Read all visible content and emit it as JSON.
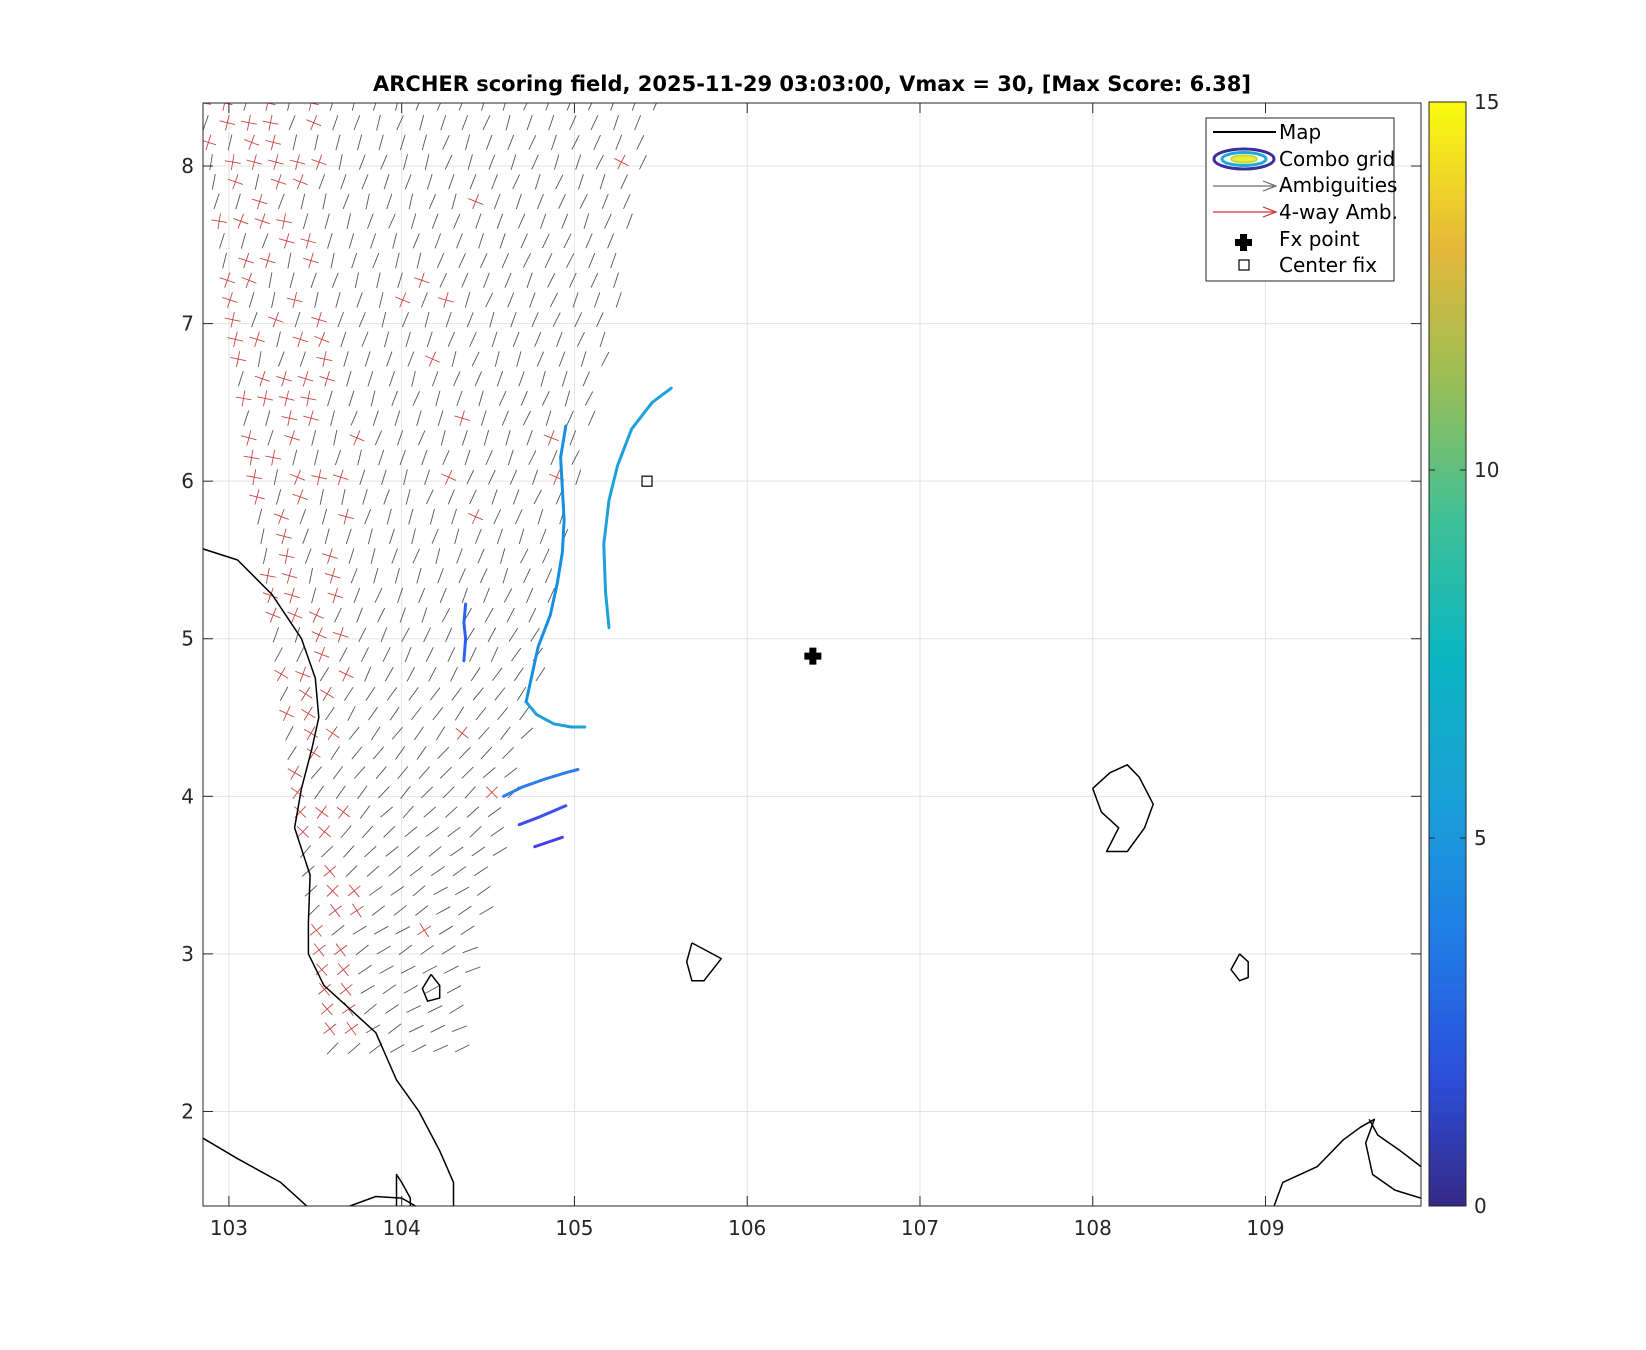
{
  "chart_data": {
    "type": "scatter",
    "title": "ARCHER scoring field, 2025-11-29 03:03:00, Vmax = 30, [Max Score: 6.38]",
    "xlabel": "",
    "ylabel": "",
    "xlim": [
      102.85,
      109.9
    ],
    "ylim": [
      1.4,
      8.4
    ],
    "x_ticks": [
      "103",
      "104",
      "105",
      "106",
      "107",
      "108",
      "109"
    ],
    "y_ticks": [
      "2",
      "3",
      "4",
      "5",
      "6",
      "7",
      "8"
    ],
    "grid": true,
    "legend": {
      "placement": "top-right",
      "entries": [
        "Map",
        "Combo grid",
        "Ambiguities",
        "4-way Amb.",
        "Fx point",
        "Center fix"
      ]
    },
    "colorbar": {
      "min": 0,
      "max": 15,
      "ticks": [
        "0",
        "5",
        "10",
        "15"
      ],
      "colormap": "parula"
    },
    "fx_point": {
      "lon": 106.38,
      "lat": 4.89
    },
    "center_fix": {
      "lon": 105.42,
      "lat": 6.0
    },
    "score_contours": [
      {
        "level": 5.8,
        "color": "#1ea1db",
        "points": [
          [
            105.2,
            5.07
          ],
          [
            105.18,
            5.3
          ],
          [
            105.17,
            5.6
          ],
          [
            105.2,
            5.88
          ],
          [
            105.25,
            6.1
          ],
          [
            105.33,
            6.33
          ],
          [
            105.45,
            6.5
          ],
          [
            105.56,
            6.59
          ]
        ]
      },
      {
        "level": 5.8,
        "color": "#1ea1db",
        "points": [
          [
            104.72,
            4.6
          ],
          [
            104.78,
            4.52
          ],
          [
            104.88,
            4.46
          ],
          [
            104.98,
            4.44
          ],
          [
            105.06,
            4.44
          ]
        ]
      },
      {
        "level": 5.3,
        "color": "#1590e0",
        "points": [
          [
            104.72,
            4.6
          ],
          [
            104.75,
            4.75
          ],
          [
            104.79,
            4.95
          ],
          [
            104.86,
            5.15
          ],
          [
            104.9,
            5.35
          ],
          [
            104.93,
            5.55
          ],
          [
            104.94,
            5.75
          ],
          [
            104.93,
            5.95
          ],
          [
            104.92,
            6.15
          ],
          [
            104.95,
            6.35
          ]
        ]
      },
      {
        "level": 4.8,
        "color": "#2a7ee9",
        "points": [
          [
            104.59,
            4.0
          ],
          [
            104.7,
            4.06
          ],
          [
            104.83,
            4.11
          ],
          [
            104.95,
            4.15
          ],
          [
            105.02,
            4.17
          ]
        ]
      },
      {
        "level": 4.4,
        "color": "#2b63ee",
        "points": [
          [
            104.36,
            4.86
          ],
          [
            104.37,
            5.0
          ],
          [
            104.36,
            5.1
          ],
          [
            104.37,
            5.22
          ]
        ]
      },
      {
        "level": 3.9,
        "color": "#3b4ef0",
        "points": [
          [
            104.68,
            3.82
          ],
          [
            104.8,
            3.87
          ],
          [
            104.95,
            3.94
          ]
        ]
      },
      {
        "level": 3.4,
        "color": "#4640ee",
        "points": [
          [
            104.77,
            3.68
          ],
          [
            104.85,
            3.71
          ],
          [
            104.93,
            3.74
          ]
        ]
      }
    ],
    "wind_region": {
      "lat_range": [
        2.4,
        8.4
      ],
      "west_lon": [
        103.6,
        102.85
      ],
      "east_lon": [
        104.35,
        105.5
      ],
      "grid_spacing": 0.125
    },
    "coastlines": [
      {
        "name": "malay-coast",
        "points": [
          [
            102.85,
            5.57
          ],
          [
            103.05,
            5.5
          ],
          [
            103.25,
            5.28
          ],
          [
            103.42,
            5.0
          ],
          [
            103.5,
            4.75
          ],
          [
            103.52,
            4.5
          ],
          [
            103.48,
            4.3
          ],
          [
            103.42,
            4.05
          ],
          [
            103.38,
            3.8
          ],
          [
            103.47,
            3.5
          ],
          [
            103.46,
            3.2
          ],
          [
            103.46,
            3.0
          ],
          [
            103.55,
            2.8
          ],
          [
            103.7,
            2.65
          ],
          [
            103.85,
            2.5
          ],
          [
            103.97,
            2.2
          ],
          [
            104.1,
            2.0
          ],
          [
            104.22,
            1.75
          ],
          [
            104.3,
            1.55
          ],
          [
            104.3,
            1.4
          ]
        ]
      },
      {
        "name": "sumatra-coast",
        "points": [
          [
            102.85,
            1.83
          ],
          [
            103.05,
            1.7
          ],
          [
            103.3,
            1.55
          ],
          [
            103.45,
            1.4
          ]
        ]
      },
      {
        "name": "small-island-south",
        "points": [
          [
            103.7,
            1.4
          ],
          [
            103.85,
            1.46
          ],
          [
            104.0,
            1.45
          ],
          [
            104.08,
            1.4
          ]
        ]
      },
      {
        "name": "small-island-east",
        "points": [
          [
            103.97,
            1.4
          ],
          [
            103.97,
            1.6
          ],
          [
            104.0,
            1.55
          ],
          [
            104.05,
            1.45
          ],
          [
            104.05,
            1.4
          ]
        ]
      },
      {
        "name": "tioman-island",
        "points": [
          [
            104.17,
            2.87
          ],
          [
            104.22,
            2.8
          ],
          [
            104.22,
            2.72
          ],
          [
            104.15,
            2.7
          ],
          [
            104.12,
            2.78
          ],
          [
            104.17,
            2.87
          ]
        ]
      },
      {
        "name": "anambas-island",
        "points": [
          [
            105.68,
            3.07
          ],
          [
            105.85,
            2.97
          ],
          [
            105.75,
            2.83
          ],
          [
            105.68,
            2.83
          ],
          [
            105.65,
            2.95
          ],
          [
            105.68,
            3.07
          ]
        ]
      },
      {
        "name": "natuna-island",
        "points": [
          [
            108.0,
            4.05
          ],
          [
            108.1,
            4.15
          ],
          [
            108.2,
            4.2
          ],
          [
            108.27,
            4.12
          ],
          [
            108.35,
            3.95
          ],
          [
            108.3,
            3.8
          ],
          [
            108.2,
            3.65
          ],
          [
            108.08,
            3.65
          ],
          [
            108.15,
            3.8
          ],
          [
            108.05,
            3.9
          ],
          [
            108.0,
            4.05
          ]
        ]
      },
      {
        "name": "subi-island",
        "points": [
          [
            108.85,
            3.0
          ],
          [
            108.9,
            2.95
          ],
          [
            108.9,
            2.85
          ],
          [
            108.85,
            2.83
          ],
          [
            108.8,
            2.9
          ],
          [
            108.85,
            3.0
          ]
        ]
      },
      {
        "name": "borneo-coast",
        "points": [
          [
            109.05,
            1.4
          ],
          [
            109.1,
            1.55
          ],
          [
            109.3,
            1.65
          ],
          [
            109.45,
            1.82
          ],
          [
            109.55,
            1.9
          ],
          [
            109.63,
            1.95
          ],
          [
            109.58,
            1.8
          ],
          [
            109.62,
            1.6
          ],
          [
            109.75,
            1.5
          ],
          [
            109.9,
            1.45
          ]
        ]
      },
      {
        "name": "borneo-coast-2",
        "points": [
          [
            109.6,
            1.95
          ],
          [
            109.65,
            1.85
          ],
          [
            109.78,
            1.75
          ],
          [
            109.9,
            1.65
          ]
        ]
      }
    ]
  }
}
